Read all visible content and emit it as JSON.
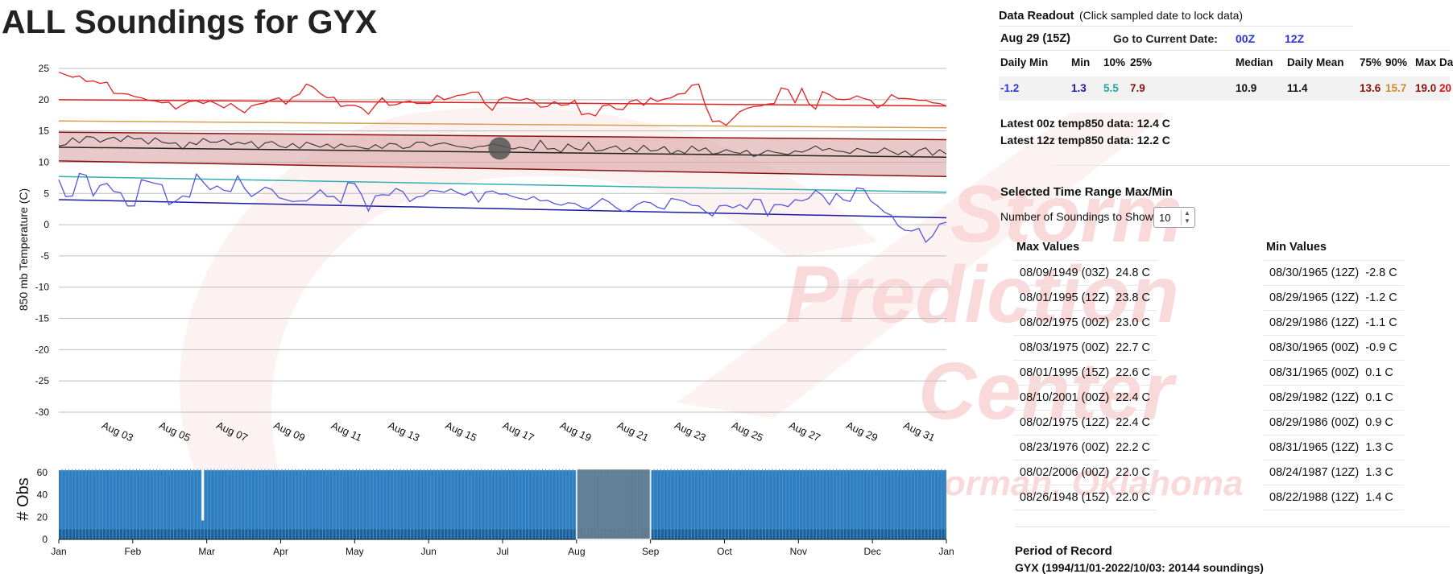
{
  "page": {
    "title": "ALL Soundings for GYX",
    "watermark": [
      "Storm",
      "Prediction",
      "Center",
      "Norman, Oklahoma"
    ]
  },
  "readout": {
    "heading": "Data Readout",
    "hint": "(Click sampled date to lock data)",
    "date": "Aug 29 (15Z)",
    "goto_label": "Go to Current Date:",
    "goto_00z": "00Z",
    "goto_12z": "12Z",
    "stats": [
      {
        "label": "Daily Min",
        "value": "-1.2",
        "color": "#2a35d8"
      },
      {
        "label": "Min",
        "value": "1.3",
        "color": "#1a1aa0"
      },
      {
        "label": "10%",
        "value": "5.5",
        "color": "#20a8a0"
      },
      {
        "label": "25%",
        "value": "7.9",
        "color": "#8b1010"
      },
      {
        "label": "Median",
        "value": "10.9",
        "color": "#111111"
      },
      {
        "label": "Daily Mean",
        "value": "11.4",
        "color": "#111111"
      },
      {
        "label": "75%",
        "value": "13.6",
        "color": "#8b1010"
      },
      {
        "label": "90%",
        "value": "15.7",
        "color": "#d08a2a"
      },
      {
        "label": "Max",
        "value": "19.0",
        "color": "#8b1010"
      },
      {
        "label": "Da",
        "value": "20",
        "color": "#e01010"
      }
    ],
    "latest_00z": "Latest 00z temp850 data: 12.4 C",
    "latest_12z": "Latest 12z temp850 data: 12.2 C"
  },
  "range": {
    "heading": "Selected Time Range Max/Min",
    "soundings_label": "Number of Soundings to Show:",
    "soundings_value": "10",
    "max_header": "Max Values",
    "min_header": "Min Values",
    "max_values": [
      {
        "date": "08/09/1949 (03Z)",
        "val": "24.8 C"
      },
      {
        "date": "08/01/1995 (12Z)",
        "val": "23.8 C"
      },
      {
        "date": "08/02/1975 (00Z)",
        "val": "23.0 C"
      },
      {
        "date": "08/03/1975 (00Z)",
        "val": "22.7 C"
      },
      {
        "date": "08/01/1995 (15Z)",
        "val": "22.6 C"
      },
      {
        "date": "08/10/2001 (00Z)",
        "val": "22.4 C"
      },
      {
        "date": "08/02/1975 (12Z)",
        "val": "22.4 C"
      },
      {
        "date": "08/23/1976 (00Z)",
        "val": "22.2 C"
      },
      {
        "date": "08/02/2006 (00Z)",
        "val": "22.0 C"
      },
      {
        "date": "08/26/1948 (15Z)",
        "val": "22.0 C"
      }
    ],
    "min_values": [
      {
        "date": "08/30/1965 (12Z)",
        "val": "-2.8 C"
      },
      {
        "date": "08/29/1965 (12Z)",
        "val": "-1.2 C"
      },
      {
        "date": "08/29/1986 (12Z)",
        "val": "-1.1 C"
      },
      {
        "date": "08/30/1965 (00Z)",
        "val": "-0.9 C"
      },
      {
        "date": "08/31/1965 (00Z)",
        "val": "0.1 C"
      },
      {
        "date": "08/29/1982 (12Z)",
        "val": "0.1 C"
      },
      {
        "date": "08/29/1986 (00Z)",
        "val": "0.9 C"
      },
      {
        "date": "08/31/1965 (12Z)",
        "val": "1.3 C"
      },
      {
        "date": "08/24/1987 (12Z)",
        "val": "1.3 C"
      },
      {
        "date": "08/22/1988 (12Z)",
        "val": "1.4 C"
      }
    ]
  },
  "record": {
    "heading": "Period of Record",
    "text": "GYX (1994/11/01-2022/10/03: 20144 soundings)"
  },
  "chart_data": [
    {
      "type": "line",
      "ylabel": "850 mb Temperature (C)",
      "ylim": [
        -30,
        25
      ],
      "yticks": [
        "25",
        "20",
        "15",
        "10",
        "5",
        "0",
        "-5",
        "-10",
        "-15",
        "-20",
        "-25",
        "-30"
      ],
      "ytick_values": [
        25,
        20,
        15,
        10,
        5,
        0,
        -5,
        -10,
        -15,
        -20,
        -25,
        -30
      ],
      "xlabels": [
        "Aug 03",
        "Aug 05",
        "Aug 07",
        "Aug 09",
        "Aug 11",
        "Aug 13",
        "Aug 15",
        "Aug 17",
        "Aug 19",
        "Aug 21",
        "Aug 23",
        "Aug 25",
        "Aug 27",
        "Aug 29",
        "Aug 31"
      ],
      "xlabel_days": [
        3,
        5,
        7,
        9,
        11,
        13,
        15,
        17,
        19,
        21,
        23,
        25,
        27,
        29,
        31
      ],
      "xlim_days": [
        1,
        32
      ],
      "grid": "horizontal",
      "colors": {
        "max": "#e02020",
        "p90": "#d4a050",
        "p75": "#8b1010",
        "median": "#222222",
        "mean": "#333333",
        "p25": "#8b1010",
        "p10": "#30b0b0",
        "min": "#1a1aa0",
        "daily_min": "#5555dd",
        "band_fill": "#d9a3a3",
        "marker": "#555555"
      },
      "constant_lines": {
        "max_start": 20.0,
        "max_end": 19.0,
        "p90_start": 16.6,
        "p90_end": 15.5,
        "p75_start": 14.8,
        "p75_end": 13.6,
        "median_start": 12.4,
        "median_end": 10.8,
        "p25_start": 10.2,
        "p25_end": 7.7,
        "p10_start": 7.7,
        "p10_end": 5.2,
        "min_start": 4.0,
        "min_end": 1.1
      },
      "daily_max_series": [
        24.4,
        24.0,
        23.6,
        23.8,
        22.9,
        23.0,
        22.6,
        22.8,
        21.0,
        21.0,
        20.9,
        20.5,
        20.3,
        19.9,
        19.8,
        19.5,
        19.6,
        18.5,
        19.2,
        19.7,
        19.8,
        19.4,
        19.8,
        19.3,
        18.7,
        19.4,
        18.6,
        17.9,
        19.0,
        19.3,
        19.5,
        20.0,
        20.3,
        19.3,
        20.4,
        20.9,
        22.5,
        22.0,
        21.0,
        20.3,
        20.4,
        18.9,
        19.1,
        19.1,
        18.7,
        17.7,
        19.1,
        20.3,
        19.1,
        19.2,
        19.6,
        19.8,
        19.4,
        19.4,
        19.4,
        20.7,
        20.0,
        20.3,
        20.7,
        20.8,
        21.2,
        21.2,
        19.3,
        18.3,
        20.0,
        20.4,
        20.1,
        19.9,
        20.2,
        19.8,
        18.8,
        18.9,
        19.7,
        19.1,
        19.2,
        19.9,
        17.6,
        17.8,
        17.4,
        19.0,
        19.2,
        18.5,
        18.4,
        19.7,
        20.0,
        19.1,
        20.3,
        19.7,
        20.1,
        20.3,
        20.9,
        21.0,
        22.3,
        22.5,
        19.0,
        16.5,
        16.6,
        15.9,
        17.0,
        18.1,
        18.6,
        18.9,
        19.0,
        19.3,
        19.4,
        21.9,
        21.6,
        19.5,
        21.8,
        19.4,
        18.5,
        21.3,
        20.8,
        20.1,
        20.0,
        20.1,
        20.6,
        20.2,
        19.9,
        18.7,
        19.4,
        20.8,
        20.2,
        20.2,
        20.1,
        19.9,
        19.9,
        19.5,
        19.4,
        19.0
      ],
      "daily_mean_series": [
        12.6,
        12.8,
        13.9,
        13.1,
        14.1,
        14.0,
        13.2,
        13.7,
        14.0,
        13.3,
        14.2,
        13.7,
        13.8,
        12.9,
        13.9,
        13.2,
        13.0,
        13.1,
        12.1,
        13.2,
        12.8,
        13.8,
        13.2,
        13.2,
        13.6,
        12.8,
        13.2,
        12.9,
        13.3,
        12.2,
        13.1,
        13.3,
        12.6,
        12.3,
        13.0,
        12.2,
        13.2,
        12.8,
        12.4,
        12.9,
        12.2,
        12.9,
        12.5,
        12.6,
        12.3,
        12.1,
        12.8,
        12.2,
        13.0,
        12.9,
        12.2,
        12.4,
        13.2,
        13.2,
        12.6,
        12.9,
        13.1,
        12.8,
        12.5,
        12.4,
        12.2,
        12.5,
        12.6,
        12.9,
        12.7,
        12.4,
        12.1,
        12.4,
        12.2,
        11.9,
        13.5,
        12.1,
        12.2,
        11.6,
        12.9,
        12.2,
        11.9,
        13.2,
        11.8,
        11.9,
        12.3,
        12.6,
        11.7,
        12.3,
        11.6,
        12.7,
        11.8,
        11.9,
        12.5,
        11.3,
        11.9,
        11.4,
        12.6,
        11.8,
        12.3,
        11.3,
        11.5,
        12.0,
        11.6,
        11.4,
        11.9,
        10.9,
        11.3,
        11.9,
        11.6,
        11.4,
        11.2,
        11.8,
        11.6,
        12.0,
        12.6,
        11.9,
        12.2,
        11.8,
        11.7,
        11.4,
        12.2,
        11.9,
        11.5,
        11.5,
        12.3,
        11.7,
        11.2,
        11.8,
        11.0,
        11.9,
        12.3,
        11.1,
        12.0,
        11.3
      ],
      "daily_min_series": [
        7.2,
        4.5,
        4.6,
        8.2,
        7.9,
        4.6,
        6.3,
        6.6,
        5.3,
        5.1,
        3.0,
        3.0,
        7.2,
        6.9,
        6.6,
        6.4,
        3.2,
        3.8,
        4.6,
        4.4,
        8.1,
        6.8,
        5.6,
        6.2,
        5.5,
        5.3,
        7.8,
        5.8,
        4.5,
        5.2,
        6.0,
        5.6,
        4.3,
        4.0,
        3.7,
        3.8,
        3.8,
        4.6,
        5.6,
        4.5,
        4.5,
        3.5,
        6.7,
        6.6,
        4.8,
        2.2,
        4.6,
        4.8,
        4.7,
        5.8,
        5.3,
        3.7,
        4.4,
        4.6,
        5.5,
        5.4,
        5.2,
        5.7,
        5.1,
        4.7,
        5.3,
        3.6,
        5.2,
        5.4,
        4.9,
        4.9,
        4.5,
        4.2,
        4.0,
        4.5,
        3.8,
        3.9,
        3.4,
        3.1,
        3.5,
        3.4,
        2.8,
        2.5,
        3.3,
        4.2,
        3.6,
        2.7,
        2.1,
        2.3,
        3.2,
        3.7,
        3.5,
        2.8,
        2.5,
        4.2,
        4.0,
        3.7,
        3.1,
        3.0,
        2.1,
        1.4,
        3.0,
        3.1,
        2.7,
        3.2,
        2.5,
        4.1,
        4.0,
        1.4,
        3.2,
        3.2,
        2.9,
        4.0,
        3.8,
        4.2,
        5.5,
        4.7,
        3.2,
        5.0,
        4.0,
        3.7,
        5.9,
        5.7,
        3.8,
        3.0,
        2.0,
        1.5,
        -0.2,
        -0.9,
        -1.0,
        -0.6,
        -2.8,
        -1.8,
        0.1,
        0.4
      ],
      "marker": {
        "day": 16.4,
        "value": 12.2
      }
    },
    {
      "type": "bar",
      "ylabel": "# Obs",
      "ylim": [
        0,
        65
      ],
      "yticks": [
        "60",
        "40",
        "20",
        "0"
      ],
      "ytick_values": [
        60,
        40,
        20,
        0
      ],
      "months": [
        "Jan",
        "Feb",
        "Mar",
        "Apr",
        "May",
        "Jun",
        "Jul",
        "Aug",
        "Sep",
        "Oct",
        "Nov",
        "Dec",
        "Jan"
      ],
      "typical_count": 62,
      "base_count": 9,
      "gap_near_mar_value": 17,
      "selected_range": [
        "Aug 01",
        "Aug 31"
      ],
      "colors": {
        "bar": "#2f7fc0",
        "bar_dark": "#1d5f98",
        "selection": "#6d7f8f"
      }
    }
  ]
}
